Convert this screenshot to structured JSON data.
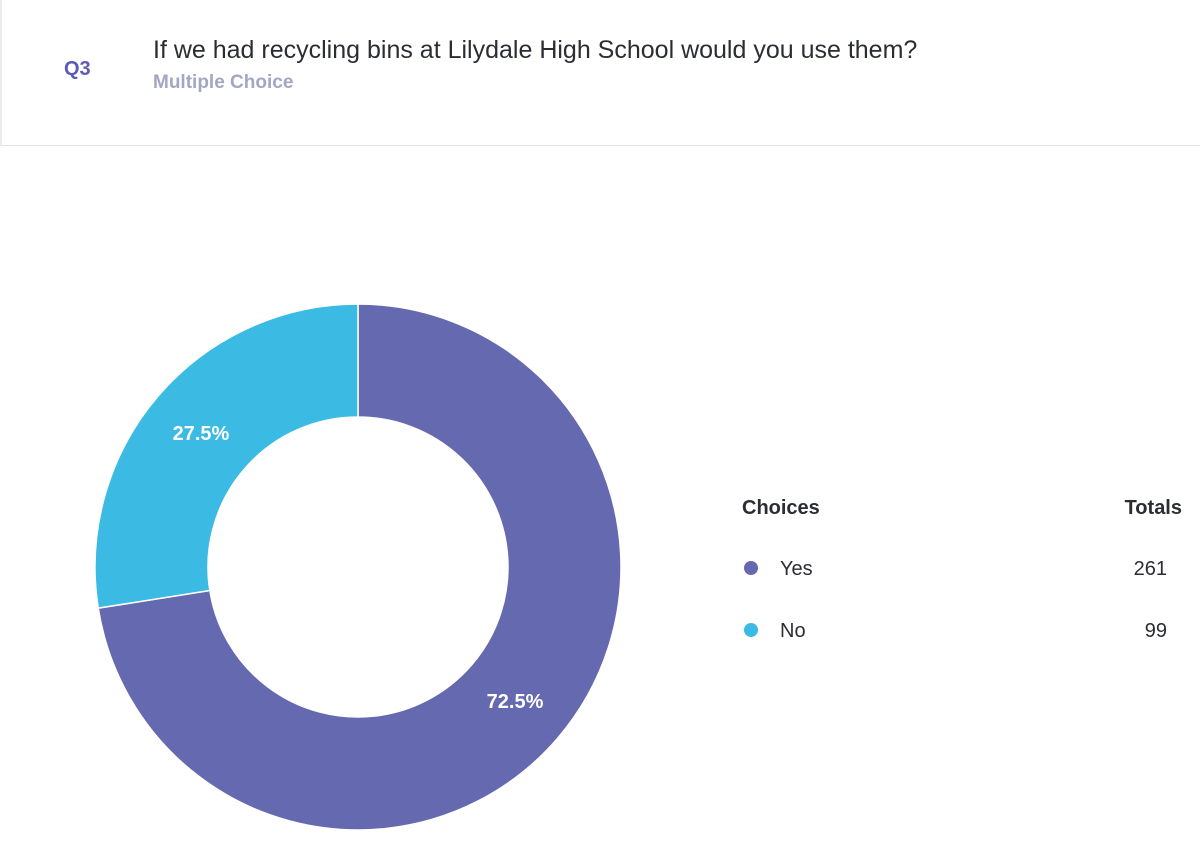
{
  "question": {
    "number": "Q3",
    "title": "If we had recycling bins at Lilydale High School would you use them?",
    "type": "Multiple Choice"
  },
  "legend": {
    "choices_header": "Choices",
    "totals_header": "Totals"
  },
  "chart_data": {
    "type": "pie",
    "style": "donut",
    "categories": [
      "Yes",
      "No"
    ],
    "values": [
      261,
      99
    ],
    "percent_labels": [
      "72.5%",
      "27.5%"
    ],
    "colors": [
      "#6469b0",
      "#3bbbe3"
    ],
    "legend_position": "right"
  }
}
